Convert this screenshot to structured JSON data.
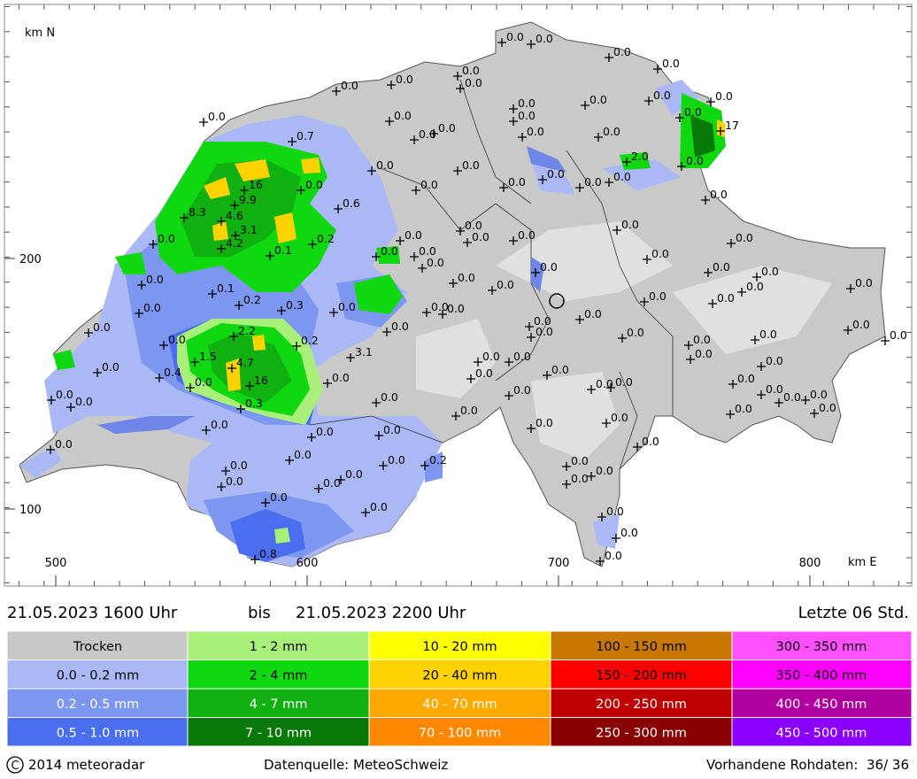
{
  "header": {
    "period_from": "21.05.2023 1600 Uhr",
    "bis": "bis",
    "period_to": "21.05.2023 2200 Uhr",
    "window": "Letzte 06 Std."
  },
  "map": {
    "x_axis": {
      "label": "km E",
      "ticks": [
        500,
        600,
        700,
        800
      ]
    },
    "y_axis": {
      "label": "km N",
      "ticks": [
        200,
        100
      ]
    },
    "stations": [
      "0.0",
      "0.0",
      "0.0",
      "0.0",
      "0.0",
      "0.0",
      "0.0",
      "0.0",
      "0.0",
      "0.0",
      "0.0",
      "0.0",
      "0.0",
      "0.0",
      "0.0",
      "0.0",
      "0.0",
      "0.0",
      "0.0",
      "17",
      "0.0",
      "0.7",
      "0.0",
      "0.0",
      "0.0",
      "0.0",
      "0.0",
      "0.0",
      "2.0",
      "0.0",
      "0.0",
      "0.0",
      "0.0",
      "16",
      "9.9",
      "0.6",
      "8.3",
      "4.6",
      "3.1",
      "4.2",
      "0.0",
      "0.2",
      "0.1",
      "0.0",
      "0.0",
      "0.0",
      "0.0",
      "0.0",
      "0.0",
      "0.0",
      "0.0",
      "0.0",
      "0.0",
      "0.0",
      "0.0",
      "0.0",
      "0.0",
      "0.1",
      "0.0",
      "0.0",
      "0.0",
      "0.0",
      "0.2",
      "0.3",
      "0.0",
      "0.0",
      "0.0",
      "0.0",
      "0.0",
      "0.0",
      "0.0",
      "0.0",
      "0.0",
      "2.2",
      "0.0",
      "0.2",
      "0.0",
      "0.0",
      "0.0",
      "0.0",
      "0.0",
      "0.0",
      "0.0",
      "1.5",
      "3.1",
      "4.7",
      "0.0",
      "0.0",
      "0.0",
      "0.0",
      "0.0",
      "0.4",
      "0.0",
      "16",
      "0.0",
      "0.0",
      "0.0",
      "0.0",
      "0.0",
      "0.0",
      "0.0",
      "0.0",
      "0.0",
      "0.0",
      "0.0",
      "0.0",
      "0.3",
      "0.0",
      "0.0",
      "0.0",
      "0.0",
      "0.0",
      "0.0",
      "0.0",
      "0.0",
      "0.0",
      "0.0",
      "0.0",
      "0.0",
      "0.0",
      "0.0",
      "0.0",
      "0.2",
      "0.0",
      "0.0",
      "0.0",
      "0.0",
      "0.0",
      "0.0",
      "0.0",
      "0.0",
      "0.0",
      "0.8",
      "0.0"
    ]
  },
  "legend": {
    "classes": [
      {
        "label": "Trocken",
        "color": "#c8c8c8",
        "text_color": "#000000"
      },
      {
        "label": "0.0 - 0.2 mm",
        "color": "#aab8f5",
        "text_color": "#000000"
      },
      {
        "label": "0.2 - 0.5 mm",
        "color": "#7d96f0",
        "text_color": "#ffffff"
      },
      {
        "label": "0.5 - 1.0 mm",
        "color": "#4a6ef0",
        "text_color": "#ffffff"
      },
      {
        "label": "1 - 2 mm",
        "color": "#a8f07a",
        "text_color": "#000000"
      },
      {
        "label": "2 - 4 mm",
        "color": "#10d810",
        "text_color": "#000000"
      },
      {
        "label": "4 - 7 mm",
        "color": "#10b010",
        "text_color": "#ffffff"
      },
      {
        "label": "7 - 10 mm",
        "color": "#087808",
        "text_color": "#ffffff"
      },
      {
        "label": "10 - 20 mm",
        "color": "#ffff00",
        "text_color": "#000000"
      },
      {
        "label": "20 - 40 mm",
        "color": "#ffd200",
        "text_color": "#000000"
      },
      {
        "label": "40 - 70 mm",
        "color": "#ffa800",
        "text_color": "#ffffff"
      },
      {
        "label": "70 - 100 mm",
        "color": "#ff8800",
        "text_color": "#ffffff"
      },
      {
        "label": "100 - 150 mm",
        "color": "#c87800",
        "text_color": "#000000"
      },
      {
        "label": "150 - 200 mm",
        "color": "#ff0000",
        "text_color": "#000000"
      },
      {
        "label": "200 - 250 mm",
        "color": "#c00000",
        "text_color": "#ffffff"
      },
      {
        "label": "250 - 300 mm",
        "color": "#880000",
        "text_color": "#ffffff"
      },
      {
        "label": "300 - 350 mm",
        "color": "#ff50ff",
        "text_color": "#000000"
      },
      {
        "label": "350 - 400 mm",
        "color": "#ff00ff",
        "text_color": "#000000"
      },
      {
        "label": "400 - 450 mm",
        "color": "#b000a0",
        "text_color": "#ffffff"
      },
      {
        "label": "450 - 500 mm",
        "color": "#8c00ff",
        "text_color": "#ffffff"
      }
    ]
  },
  "footer": {
    "copyright": "2014 meteoradar",
    "source": "Datenquelle: MeteoSchweiz",
    "raw_data": "Vorhandene Rohdaten:  36/ 36"
  }
}
